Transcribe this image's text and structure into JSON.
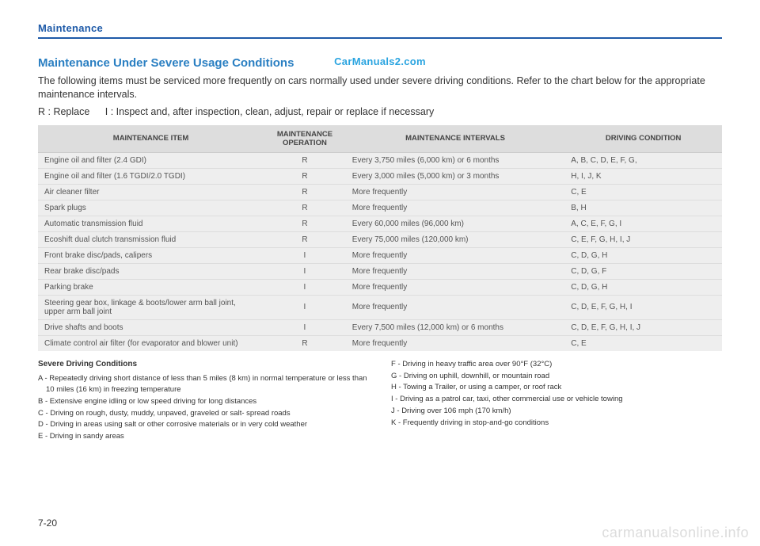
{
  "section_label": "Maintenance",
  "watermark_top": "CarManuals2.com",
  "heading": "Maintenance Under Severe Usage Conditions",
  "intro": "The following items must be serviced more frequently on cars normally used under severe driving conditions. Refer to the chart below for the appropriate maintenance intervals.",
  "legend": "R : Replace   I : Inspect and, after inspection, clean, adjust, repair or replace if necessary",
  "table": {
    "headers": {
      "item": "MAINTENANCE ITEM",
      "operation": "MAINTENANCE OPERATION",
      "intervals": "MAINTENANCE INTERVALS",
      "condition": "DRIVING CONDITION"
    },
    "rows": [
      {
        "item": "Engine oil and filter (2.4 GDI)",
        "op": "R",
        "int": "Every 3,750 miles (6,000 km) or 6 months",
        "cond": "A, B, C, D, E, F, G,"
      },
      {
        "item": "Engine oil and filter (1.6 TGDI/2.0 TGDI)",
        "op": "R",
        "int": "Every 3,000 miles (5,000 km) or 3 months",
        "cond": "H, I, J, K"
      },
      {
        "item": "Air cleaner filter",
        "op": "R",
        "int": "More frequently",
        "cond": "C, E"
      },
      {
        "item": "Spark plugs",
        "op": "R",
        "int": "More frequently",
        "cond": "B, H"
      },
      {
        "item": "Automatic transmission fluid",
        "op": "R",
        "int": "Every 60,000 miles (96,000 km)",
        "cond": "A, C, E, F, G, I"
      },
      {
        "item": "Ecoshift dual clutch transmission fluid",
        "op": "R",
        "int": "Every 75,000 miles (120,000 km)",
        "cond": "C, E, F, G, H, I, J"
      },
      {
        "item": "Front brake disc/pads, calipers",
        "op": "I",
        "int": "More frequently",
        "cond": "C, D, G, H"
      },
      {
        "item": "Rear brake disc/pads",
        "op": "I",
        "int": "More frequently",
        "cond": "C, D, G, F"
      },
      {
        "item": "Parking brake",
        "op": "I",
        "int": "More frequently",
        "cond": "C, D, G, H"
      },
      {
        "item": "Steering gear box, linkage & boots/lower arm ball joint, upper arm ball joint",
        "op": "I",
        "int": "More frequently",
        "cond": "C, D, E, F, G, H, I"
      },
      {
        "item": "Drive shafts and boots",
        "op": "I",
        "int": "Every 7,500 miles (12,000 km) or 6 months",
        "cond": "C, D, E, F, G, H, I, J"
      },
      {
        "item": "Climate control air filter (for evaporator and blower unit)",
        "op": "R",
        "int": "More frequently",
        "cond": "C, E"
      }
    ]
  },
  "footnotes": {
    "title": "Severe Driving Conditions",
    "left": [
      "A - Repeatedly driving short distance of less than 5 miles (8 km) in normal temperature or less than 10 miles (16 km) in freezing temperature",
      "B - Extensive engine idling or low speed driving for long distances",
      "C - Driving on rough, dusty, muddy, unpaved, graveled or salt- spread roads",
      "D - Driving in areas using salt or other corrosive materials or in very cold weather",
      "E - Driving in sandy areas"
    ],
    "right": [
      "F - Driving in heavy traffic area over 90°F (32°C)",
      "G - Driving on uphill, downhill, or mountain road",
      "H - Towing a Trailer, or using a camper, or roof rack",
      "I  - Driving as a patrol car, taxi, other commercial use or vehicle towing",
      "J - Driving over 106 mph (170 km/h)",
      "K - Frequently driving in stop-and-go conditions"
    ]
  },
  "page_corner": "7-20",
  "watermark_bottom": "carmanualsonline.info"
}
